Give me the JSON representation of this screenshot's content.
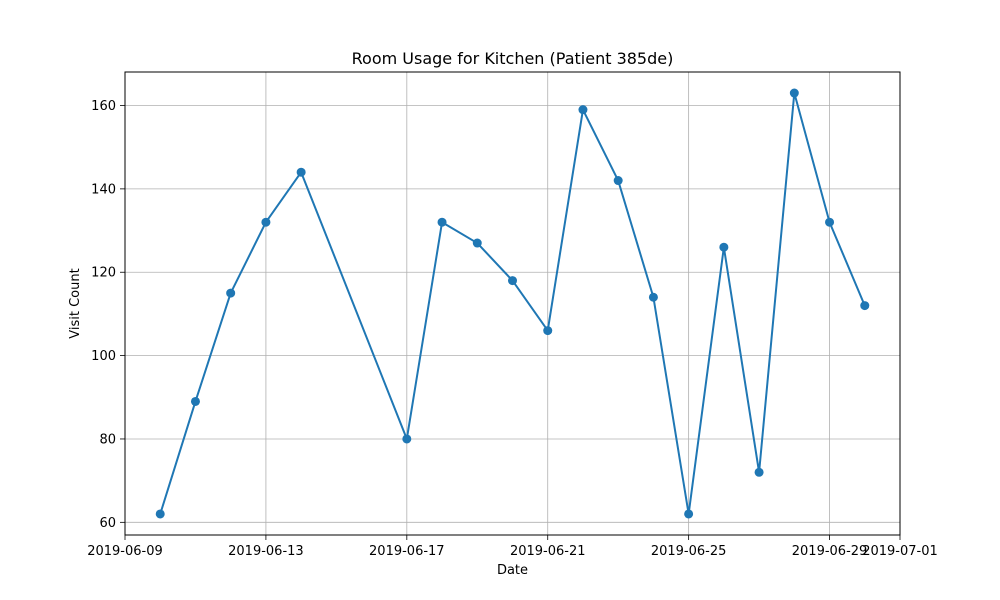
{
  "chart_data": {
    "type": "line",
    "title": "Room Usage for Kitchen (Patient 385de)",
    "xlabel": "Date",
    "ylabel": "Visit Count",
    "x_axis_type": "date",
    "xlim": [
      "2019-06-09",
      "2019-07-01"
    ],
    "ylim": [
      56.96,
      168.04
    ],
    "grid": true,
    "x_ticks": [
      "2019-06-09",
      "2019-06-13",
      "2019-06-17",
      "2019-06-21",
      "2019-06-25",
      "2019-06-29",
      "2019-07-01"
    ],
    "y_ticks": [
      60,
      80,
      100,
      120,
      140,
      160
    ],
    "series": [
      {
        "color": "#1f77b4",
        "marker": "circle",
        "x": [
          "2019-06-10",
          "2019-06-11",
          "2019-06-12",
          "2019-06-13",
          "2019-06-14",
          "2019-06-17",
          "2019-06-18",
          "2019-06-19",
          "2019-06-20",
          "2019-06-21",
          "2019-06-22",
          "2019-06-23",
          "2019-06-24",
          "2019-06-25",
          "2019-06-26",
          "2019-06-27",
          "2019-06-28",
          "2019-06-29",
          "2019-06-30"
        ],
        "y": [
          62,
          89,
          115,
          132,
          144,
          80,
          132,
          127,
          118,
          106,
          159,
          142,
          114,
          62,
          126,
          72,
          163,
          132,
          112
        ]
      }
    ]
  }
}
